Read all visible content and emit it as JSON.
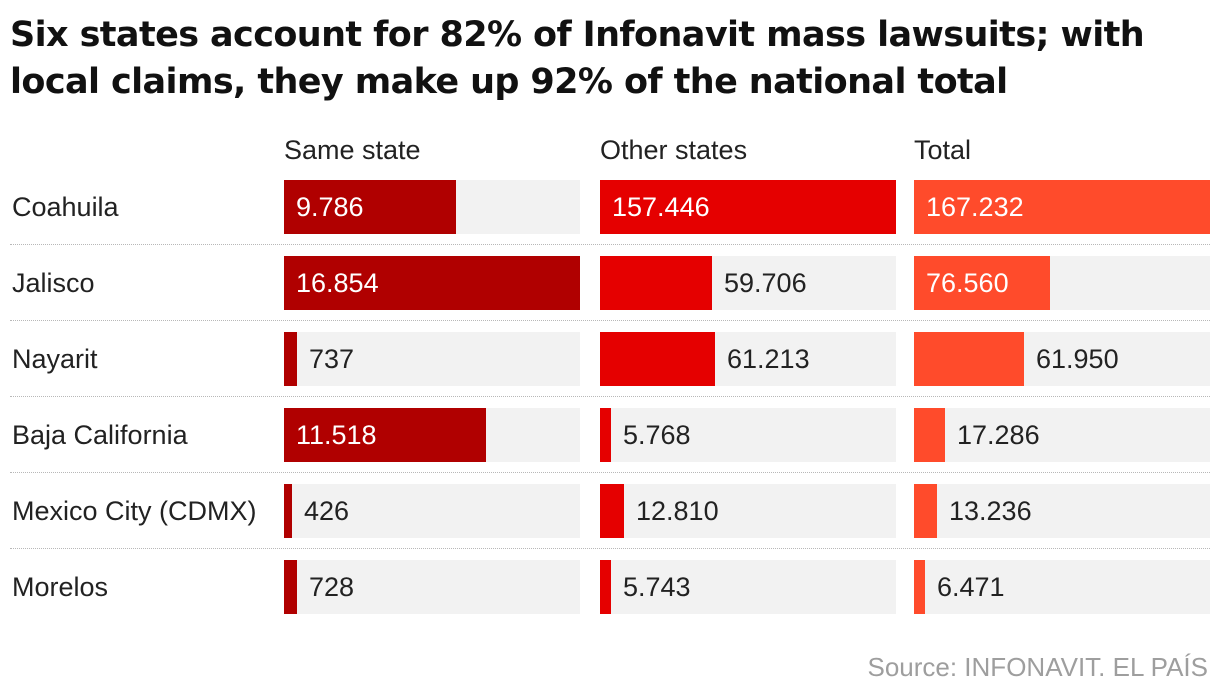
{
  "chart_data": {
    "type": "bar",
    "title": "Six states account for 82% of Infonavit mass lawsuits; with local claims, they make up 92% of the national total",
    "categories": [
      "Coahuila",
      "Jalisco",
      "Nayarit",
      "Baja California",
      "Mexico City (CDMX)",
      "Morelos"
    ],
    "series": [
      {
        "name": "Same state",
        "color": "#b00000",
        "values": [
          9786,
          16854,
          737,
          11518,
          426,
          728
        ],
        "labels": [
          "9.786",
          "16.854",
          "737",
          "11.518",
          "426",
          "728"
        ],
        "xlim": [
          0,
          16854
        ]
      },
      {
        "name": "Other states",
        "color": "#e50000",
        "values": [
          157446,
          59706,
          61213,
          5768,
          12810,
          5743
        ],
        "labels": [
          "157.446",
          "59.706",
          "61.213",
          "5.768",
          "12.810",
          "5.743"
        ],
        "xlim": [
          0,
          157446
        ]
      },
      {
        "name": "Total",
        "color": "#ff4b2b",
        "values": [
          167232,
          76560,
          61950,
          17286,
          13236,
          6471
        ],
        "labels": [
          "167.232",
          "76.560",
          "61.950",
          "17.286",
          "13.236",
          "6.471"
        ],
        "xlim": [
          0,
          167232
        ]
      }
    ],
    "track_color": "#f2f2f2",
    "source": "Source: INFONAVIT. EL PAÍS"
  }
}
